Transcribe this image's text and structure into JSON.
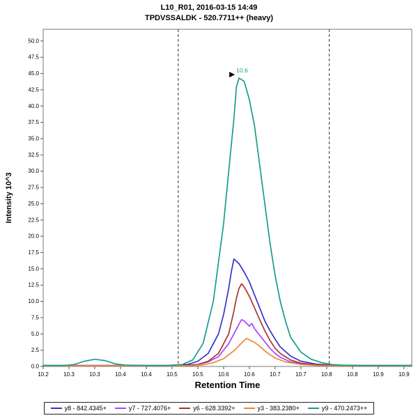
{
  "title": {
    "line1": "L10_R01, 2016-03-15 14:49",
    "line2": "TPDVSSALDK - 520.7711++ (heavy)"
  },
  "chart_data": {
    "type": "line",
    "title": "L10_R01, 2016-03-15 14:49 / TPDVSSALDK - 520.7711++ (heavy)",
    "xlabel": "Retention Time",
    "ylabel": "Intensity 10^3",
    "xlim": [
      10.2,
      10.915
    ],
    "ylim": [
      0,
      51.8
    ],
    "grid": false,
    "legend_position": "bottom",
    "yticks": [
      0,
      2.5,
      5,
      7.5,
      10,
      12.5,
      15,
      17.5,
      20,
      22.5,
      25,
      27.5,
      30,
      32.5,
      35,
      37.5,
      40,
      42.5,
      45,
      47.5,
      50
    ],
    "xticks": [
      {
        "v": 10.2,
        "label": "10.2"
      },
      {
        "v": 10.25,
        "label": "10.3"
      },
      {
        "v": 10.3,
        "label": "10.3"
      },
      {
        "v": 10.35,
        "label": "10.4"
      },
      {
        "v": 10.4,
        "label": "10.4"
      },
      {
        "v": 10.45,
        "label": "10.5"
      },
      {
        "v": 10.5,
        "label": "10.5"
      },
      {
        "v": 10.55,
        "label": "10.6"
      },
      {
        "v": 10.6,
        "label": "10.6"
      },
      {
        "v": 10.65,
        "label": "10.7"
      },
      {
        "v": 10.7,
        "label": "10.7"
      },
      {
        "v": 10.75,
        "label": "10.8"
      },
      {
        "v": 10.8,
        "label": "10.8"
      },
      {
        "v": 10.85,
        "label": "10.9"
      },
      {
        "v": 10.9,
        "label": "10.9"
      }
    ],
    "integration_boundaries": [
      10.462,
      10.755
    ],
    "annotation": {
      "rt": 10.58,
      "apex_intensity": 44.3,
      "label": "10.6",
      "color": "#169c8c"
    },
    "series": [
      {
        "id": "y8",
        "name": "y8 - 842.4345+",
        "color": "#3333cc",
        "points": [
          [
            10.2,
            0.15
          ],
          [
            10.44,
            0.15
          ],
          [
            10.48,
            0.3
          ],
          [
            10.5,
            0.8
          ],
          [
            10.52,
            2.0
          ],
          [
            10.54,
            5.0
          ],
          [
            10.55,
            8.0
          ],
          [
            10.56,
            12.0
          ],
          [
            10.565,
            14.5
          ],
          [
            10.57,
            16.5
          ],
          [
            10.58,
            15.8
          ],
          [
            10.59,
            14.5
          ],
          [
            10.6,
            13.0
          ],
          [
            10.61,
            11.0
          ],
          [
            10.62,
            9.0
          ],
          [
            10.63,
            7.0
          ],
          [
            10.64,
            5.5
          ],
          [
            10.65,
            4.2
          ],
          [
            10.66,
            3.0
          ],
          [
            10.68,
            1.6
          ],
          [
            10.7,
            0.8
          ],
          [
            10.73,
            0.35
          ],
          [
            10.76,
            0.2
          ],
          [
            10.8,
            0.15
          ],
          [
            10.915,
            0.15
          ]
        ]
      },
      {
        "id": "y7",
        "name": "y7 - 727.4076+",
        "color": "#aa44ff",
        "points": [
          [
            10.2,
            0.12
          ],
          [
            10.47,
            0.12
          ],
          [
            10.5,
            0.3
          ],
          [
            10.52,
            0.7
          ],
          [
            10.54,
            1.5
          ],
          [
            10.56,
            3.5
          ],
          [
            10.57,
            5.0
          ],
          [
            10.58,
            6.5
          ],
          [
            10.585,
            7.2
          ],
          [
            10.59,
            7.0
          ],
          [
            10.6,
            6.2
          ],
          [
            10.605,
            6.6
          ],
          [
            10.61,
            5.8
          ],
          [
            10.62,
            4.8
          ],
          [
            10.63,
            3.8
          ],
          [
            10.64,
            2.8
          ],
          [
            10.65,
            2.0
          ],
          [
            10.66,
            1.4
          ],
          [
            10.68,
            0.7
          ],
          [
            10.71,
            0.3
          ],
          [
            10.75,
            0.15
          ],
          [
            10.915,
            0.12
          ]
        ]
      },
      {
        "id": "y6",
        "name": "y6 - 628.3392+",
        "color": "#aa3333",
        "points": [
          [
            10.2,
            0.1
          ],
          [
            10.46,
            0.1
          ],
          [
            10.5,
            0.3
          ],
          [
            10.52,
            0.8
          ],
          [
            10.54,
            2.0
          ],
          [
            10.56,
            5.0
          ],
          [
            10.57,
            8.5
          ],
          [
            10.575,
            10.5
          ],
          [
            10.58,
            12.0
          ],
          [
            10.585,
            12.7
          ],
          [
            10.59,
            12.2
          ],
          [
            10.6,
            10.8
          ],
          [
            10.61,
            9.0
          ],
          [
            10.62,
            7.2
          ],
          [
            10.63,
            5.5
          ],
          [
            10.64,
            4.0
          ],
          [
            10.65,
            2.8
          ],
          [
            10.66,
            2.0
          ],
          [
            10.68,
            1.0
          ],
          [
            10.7,
            0.5
          ],
          [
            10.73,
            0.25
          ],
          [
            10.76,
            0.12
          ],
          [
            10.915,
            0.1
          ]
        ]
      },
      {
        "id": "y3",
        "name": "y3 - 383.2380+",
        "color": "#e8883a",
        "points": [
          [
            10.2,
            0.1
          ],
          [
            10.48,
            0.1
          ],
          [
            10.51,
            0.25
          ],
          [
            10.53,
            0.6
          ],
          [
            10.55,
            1.2
          ],
          [
            10.57,
            2.4
          ],
          [
            10.58,
            3.2
          ],
          [
            10.59,
            4.0
          ],
          [
            10.595,
            4.3
          ],
          [
            10.6,
            4.1
          ],
          [
            10.61,
            3.7
          ],
          [
            10.62,
            3.1
          ],
          [
            10.63,
            2.4
          ],
          [
            10.64,
            1.8
          ],
          [
            10.65,
            1.3
          ],
          [
            10.67,
            0.7
          ],
          [
            10.7,
            0.3
          ],
          [
            10.74,
            0.12
          ],
          [
            10.915,
            0.1
          ]
        ]
      },
      {
        "id": "y9",
        "name": "y9 - 470.2473++",
        "color": "#169c8c",
        "points": [
          [
            10.2,
            0.15
          ],
          [
            10.24,
            0.15
          ],
          [
            10.26,
            0.3
          ],
          [
            10.28,
            0.8
          ],
          [
            10.3,
            1.1
          ],
          [
            10.32,
            0.9
          ],
          [
            10.34,
            0.4
          ],
          [
            10.36,
            0.2
          ],
          [
            10.4,
            0.15
          ],
          [
            10.44,
            0.15
          ],
          [
            10.47,
            0.3
          ],
          [
            10.49,
            1.0
          ],
          [
            10.51,
            3.5
          ],
          [
            10.53,
            10.0
          ],
          [
            10.55,
            22.0
          ],
          [
            10.56,
            30.0
          ],
          [
            10.57,
            38.0
          ],
          [
            10.575,
            43.0
          ],
          [
            10.58,
            44.3
          ],
          [
            10.59,
            43.8
          ],
          [
            10.6,
            41.0
          ],
          [
            10.61,
            37.0
          ],
          [
            10.62,
            31.0
          ],
          [
            10.63,
            25.0
          ],
          [
            10.64,
            19.0
          ],
          [
            10.65,
            14.0
          ],
          [
            10.66,
            10.0
          ],
          [
            10.67,
            7.0
          ],
          [
            10.68,
            4.5
          ],
          [
            10.7,
            2.2
          ],
          [
            10.72,
            1.1
          ],
          [
            10.74,
            0.6
          ],
          [
            10.76,
            0.3
          ],
          [
            10.78,
            0.2
          ],
          [
            10.82,
            0.15
          ],
          [
            10.915,
            0.15
          ]
        ]
      }
    ]
  }
}
